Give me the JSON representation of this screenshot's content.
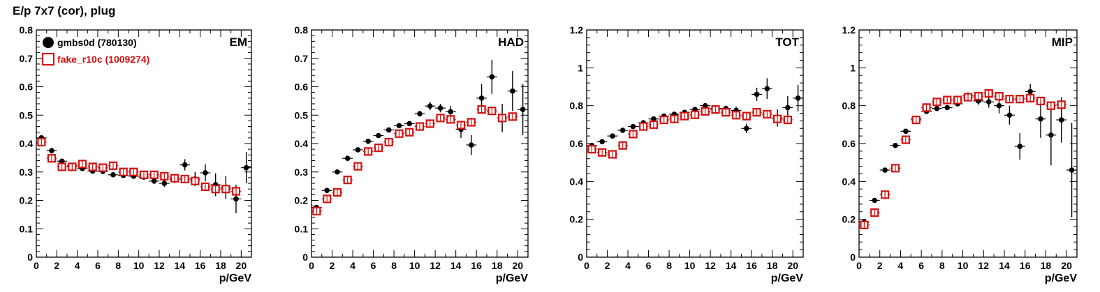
{
  "page_title": "E/p 7x7 (cor), plug",
  "colors": {
    "series_a": "#000000",
    "series_b": "#d41111"
  },
  "legend": [
    {
      "label": "gmbs0d (780130)",
      "marker": "filled-circle",
      "color": "#000000"
    },
    {
      "label": "fake_r10c (1009274)",
      "marker": "open-square",
      "color": "#d41111"
    }
  ],
  "chart_data": [
    {
      "type": "scatter",
      "label": "EM",
      "xlabel": "p/GeV",
      "xlim": [
        0,
        21
      ],
      "ylim": [
        0,
        0.8
      ],
      "xticks": [
        "0",
        "2",
        "4",
        "6",
        "8",
        "10",
        "12",
        "14",
        "16",
        "18",
        "20"
      ],
      "yticks": [
        "0",
        "0.1",
        "0.2",
        "0.3",
        "0.4",
        "0.5",
        "0.6",
        "0.7",
        "0.8"
      ],
      "series": [
        {
          "name": "gmbs0d (780130)",
          "x": [
            0.5,
            1.5,
            2.5,
            3.5,
            4.5,
            5.5,
            6.5,
            7.5,
            8.5,
            9.5,
            10.5,
            11.5,
            12.5,
            13.5,
            14.5,
            15.5,
            16.5,
            17.5,
            18.5,
            19.5,
            20.5
          ],
          "y": [
            0.42,
            0.375,
            0.338,
            0.322,
            0.312,
            0.303,
            0.302,
            0.29,
            0.288,
            0.285,
            0.282,
            0.268,
            0.26,
            0.275,
            0.325,
            0.275,
            0.297,
            0.255,
            0.245,
            0.205,
            0.315
          ],
          "err": [
            0.01,
            0.01,
            0.008,
            0.008,
            0.008,
            0.008,
            0.008,
            0.008,
            0.008,
            0.008,
            0.008,
            0.01,
            0.012,
            0.015,
            0.02,
            0.025,
            0.03,
            0.04,
            0.04,
            0.05,
            0.055
          ]
        },
        {
          "name": "fake_r10c (1009274)",
          "x": [
            0.5,
            1.5,
            2.5,
            3.5,
            4.5,
            5.5,
            6.5,
            7.5,
            8.5,
            9.5,
            10.5,
            11.5,
            12.5,
            13.5,
            14.5,
            15.5,
            16.5,
            17.5,
            18.5,
            19.5
          ],
          "y": [
            0.405,
            0.348,
            0.318,
            0.318,
            0.328,
            0.318,
            0.315,
            0.322,
            0.3,
            0.3,
            0.29,
            0.29,
            0.285,
            0.278,
            0.275,
            0.268,
            0.248,
            0.24,
            0.24,
            0.232
          ]
        }
      ]
    },
    {
      "type": "scatter",
      "label": "HAD",
      "xlabel": "p/GeV",
      "xlim": [
        0,
        21
      ],
      "ylim": [
        0,
        0.8
      ],
      "xticks": [
        "0",
        "2",
        "4",
        "6",
        "8",
        "10",
        "12",
        "14",
        "16",
        "18",
        "20"
      ],
      "yticks": [
        "0",
        "0.1",
        "0.2",
        "0.3",
        "0.4",
        "0.5",
        "0.6",
        "0.7",
        "0.8"
      ],
      "series": [
        {
          "name": "gmbs0d (780130)",
          "x": [
            0.5,
            1.5,
            2.5,
            3.5,
            4.5,
            5.5,
            6.5,
            7.5,
            8.5,
            9.5,
            10.5,
            11.5,
            12.5,
            13.5,
            14.5,
            15.5,
            16.5,
            17.5,
            18.5,
            19.5,
            20.5
          ],
          "y": [
            0.175,
            0.235,
            0.3,
            0.348,
            0.378,
            0.408,
            0.428,
            0.448,
            0.463,
            0.47,
            0.505,
            0.532,
            0.525,
            0.512,
            0.45,
            0.395,
            0.56,
            0.635,
            0.49,
            0.585,
            0.52
          ],
          "err": [
            0.005,
            0.005,
            0.006,
            0.006,
            0.006,
            0.006,
            0.006,
            0.006,
            0.007,
            0.008,
            0.01,
            0.015,
            0.015,
            0.02,
            0.03,
            0.035,
            0.05,
            0.06,
            0.05,
            0.07,
            0.09
          ]
        },
        {
          "name": "fake_r10c (1009274)",
          "x": [
            0.5,
            1.5,
            2.5,
            3.5,
            4.5,
            5.5,
            6.5,
            7.5,
            8.5,
            9.5,
            10.5,
            11.5,
            12.5,
            13.5,
            14.5,
            15.5,
            16.5,
            17.5,
            18.5,
            19.5
          ],
          "y": [
            0.162,
            0.205,
            0.228,
            0.272,
            0.32,
            0.372,
            0.385,
            0.405,
            0.435,
            0.44,
            0.46,
            0.47,
            0.49,
            0.485,
            0.465,
            0.475,
            0.52,
            0.515,
            0.49,
            0.495
          ]
        }
      ]
    },
    {
      "type": "scatter",
      "label": "TOT",
      "xlabel": "p/GeV",
      "xlim": [
        0,
        21
      ],
      "ylim": [
        0,
        1.2
      ],
      "xticks": [
        "0",
        "2",
        "4",
        "6",
        "8",
        "10",
        "12",
        "14",
        "16",
        "18",
        "20"
      ],
      "yticks": [
        "0",
        "0.2",
        "0.4",
        "0.6",
        "0.8",
        "1",
        "1.2"
      ],
      "series": [
        {
          "name": "gmbs0d (780130)",
          "x": [
            0.5,
            1.5,
            2.5,
            3.5,
            4.5,
            5.5,
            6.5,
            7.5,
            8.5,
            9.5,
            10.5,
            11.5,
            12.5,
            13.5,
            14.5,
            15.5,
            16.5,
            17.5,
            18.5,
            19.5,
            20.5
          ],
          "y": [
            0.59,
            0.61,
            0.64,
            0.67,
            0.69,
            0.71,
            0.73,
            0.745,
            0.755,
            0.765,
            0.78,
            0.8,
            0.785,
            0.785,
            0.775,
            0.68,
            0.86,
            0.89,
            0.735,
            0.79,
            0.84
          ],
          "err": [
            0.006,
            0.006,
            0.006,
            0.006,
            0.006,
            0.006,
            0.006,
            0.006,
            0.008,
            0.008,
            0.01,
            0.01,
            0.012,
            0.015,
            0.02,
            0.025,
            0.035,
            0.055,
            0.045,
            0.06,
            0.07
          ]
        },
        {
          "name": "fake_r10c (1009274)",
          "x": [
            0.5,
            1.5,
            2.5,
            3.5,
            4.5,
            5.5,
            6.5,
            7.5,
            8.5,
            9.5,
            10.5,
            11.5,
            12.5,
            13.5,
            14.5,
            15.5,
            16.5,
            17.5,
            18.5,
            19.5
          ],
          "y": [
            0.57,
            0.553,
            0.543,
            0.59,
            0.65,
            0.69,
            0.7,
            0.725,
            0.73,
            0.745,
            0.752,
            0.77,
            0.78,
            0.765,
            0.75,
            0.745,
            0.765,
            0.755,
            0.73,
            0.725
          ]
        }
      ]
    },
    {
      "type": "scatter",
      "label": "MIP",
      "xlabel": "p/GeV",
      "xlim": [
        0,
        21
      ],
      "ylim": [
        0,
        1.2
      ],
      "xticks": [
        "0",
        "2",
        "4",
        "6",
        "8",
        "10",
        "12",
        "14",
        "16",
        "18",
        "20"
      ],
      "yticks": [
        "0",
        "0.2",
        "0.4",
        "0.6",
        "0.8",
        "1",
        "1.2"
      ],
      "series": [
        {
          "name": "gmbs0d (780130)",
          "x": [
            0.5,
            1.5,
            2.5,
            3.5,
            4.5,
            5.5,
            6.5,
            7.5,
            8.5,
            9.5,
            10.5,
            11.5,
            12.5,
            13.5,
            14.5,
            15.5,
            16.5,
            17.5,
            18.5,
            19.5,
            20.5
          ],
          "y": [
            0.185,
            0.3,
            0.46,
            0.59,
            0.665,
            0.73,
            0.77,
            0.785,
            0.79,
            0.81,
            0.855,
            0.825,
            0.82,
            0.8,
            0.75,
            0.585,
            0.875,
            0.73,
            0.645,
            0.725,
            0.46
          ],
          "err": [
            0.005,
            0.005,
            0.006,
            0.006,
            0.006,
            0.006,
            0.006,
            0.008,
            0.008,
            0.01,
            0.015,
            0.02,
            0.03,
            0.04,
            0.05,
            0.07,
            0.04,
            0.1,
            0.16,
            0.12,
            0.25
          ]
        },
        {
          "name": "fake_r10c (1009274)",
          "x": [
            0.5,
            1.5,
            2.5,
            3.5,
            4.5,
            5.5,
            6.5,
            7.5,
            8.5,
            9.5,
            10.5,
            11.5,
            12.5,
            13.5,
            14.5,
            15.5,
            16.5,
            17.5,
            18.5,
            19.5
          ],
          "y": [
            0.17,
            0.235,
            0.33,
            0.47,
            0.62,
            0.725,
            0.79,
            0.82,
            0.83,
            0.83,
            0.845,
            0.85,
            0.865,
            0.85,
            0.835,
            0.835,
            0.84,
            0.825,
            0.8,
            0.805
          ]
        }
      ]
    }
  ]
}
